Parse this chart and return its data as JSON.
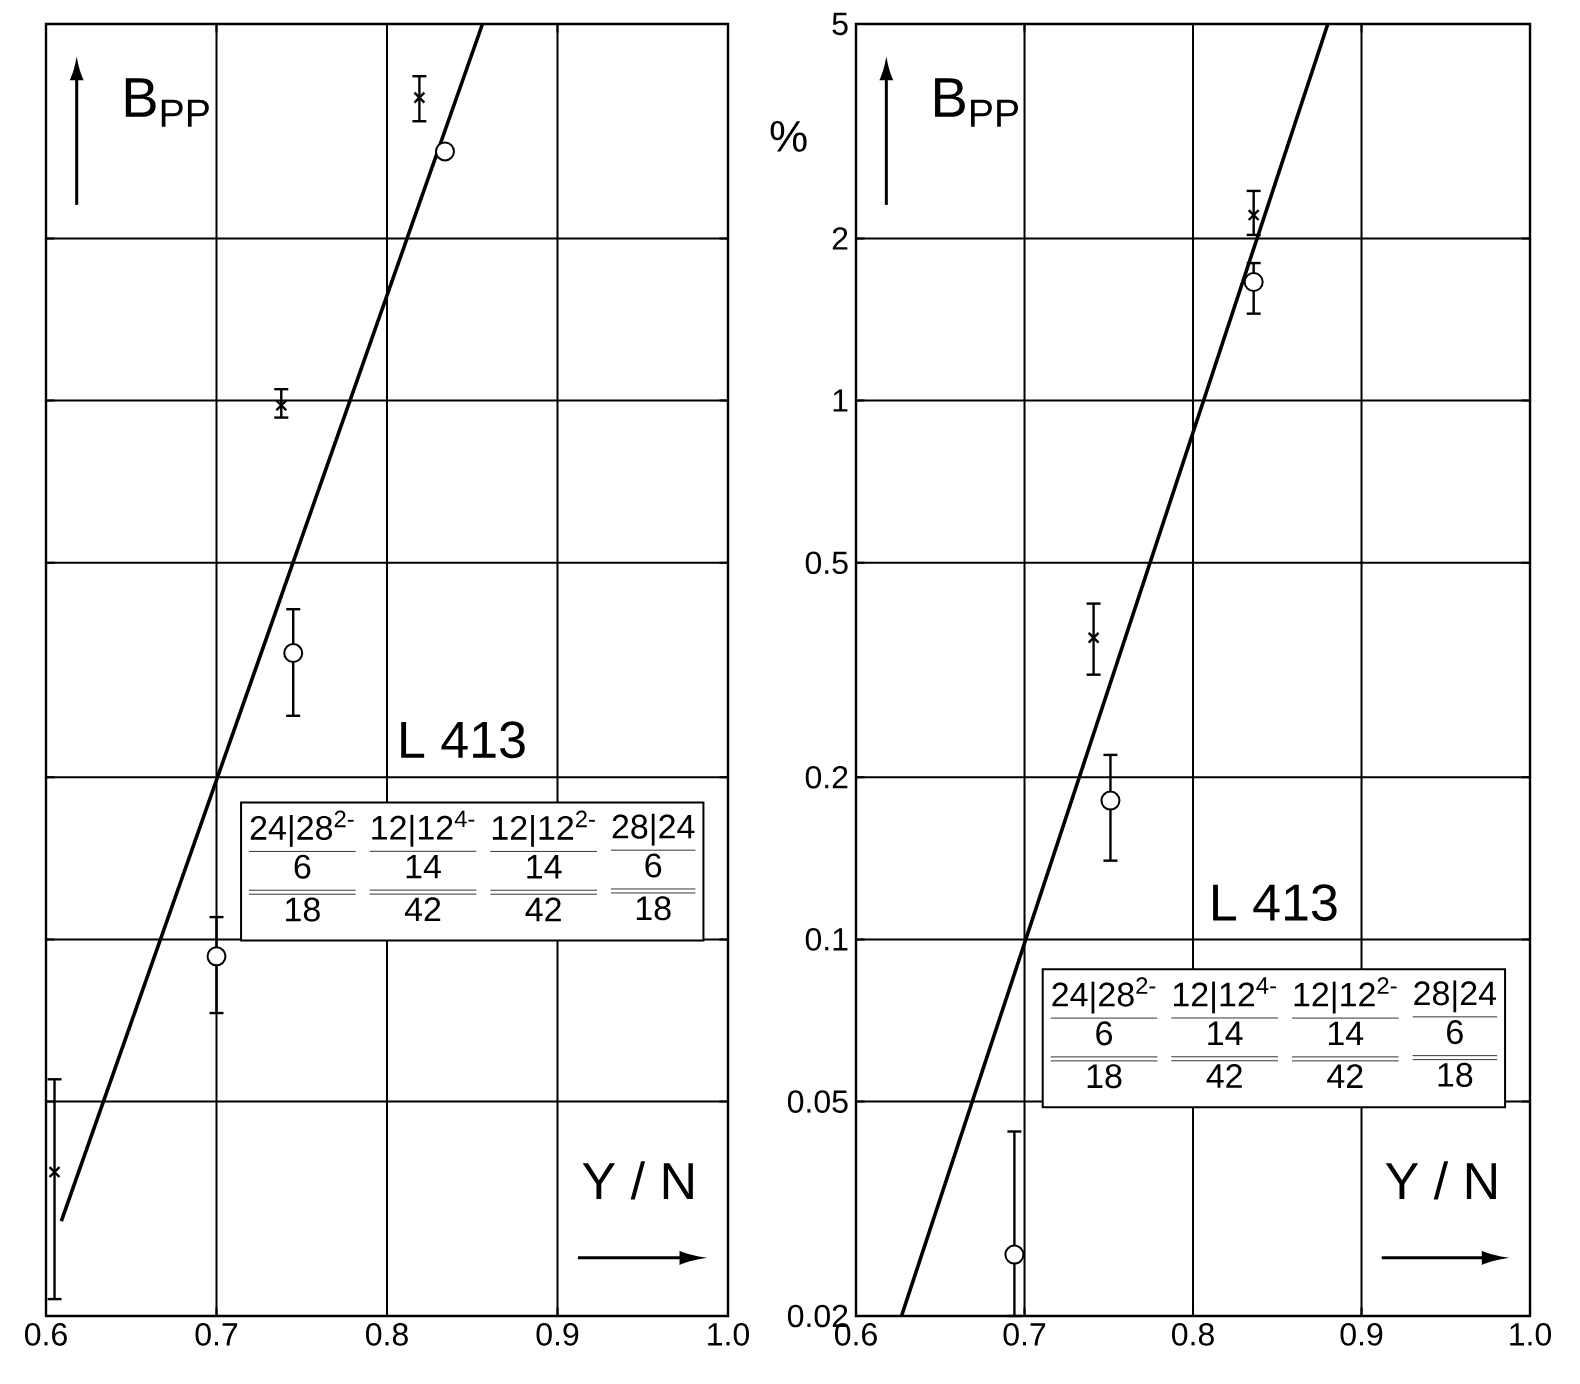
{
  "chart_data": [
    {
      "type": "scatter",
      "title": "B$_{PP}$",
      "xlabel": "Y / N",
      "log": "y",
      "grid": true,
      "tick_labels": "x",
      "xlim": [
        0.6,
        1.0
      ],
      "xticks": [
        0.6,
        0.7,
        0.8,
        0.9,
        {
          "value": 1.0,
          "label": "1.0"
        }
      ],
      "ylim": [
        0.02,
        5
      ],
      "yticks": [
        0.02,
        0.05,
        0.1,
        0.2,
        0.5,
        1,
        2,
        5
      ],
      "series": [
        {
          "marker": "cross",
          "color": "#000000",
          "x": [
            0.605,
            0.738,
            0.819
          ],
          "values": [
            0.037,
            0.98,
            3.65
          ],
          "errors": [
            [
              0.0215,
              0.055
            ],
            [
              0.93,
              1.05
            ],
            [
              3.3,
              4.0
            ]
          ]
        },
        {
          "marker": "circle",
          "color": "#000000",
          "x": [
            0.7,
            0.745,
            0.834
          ],
          "values": [
            0.093,
            0.34,
            2.9
          ],
          "errors": [
            [
              0.073,
              0.11
            ],
            [
              0.26,
              0.41
            ],
            null
          ]
        },
        {
          "type": "line",
          "marker": "none",
          "color": "#000000",
          "x": [
            0.609,
            0.856
          ],
          "values": [
            0.03,
            5
          ]
        }
      ],
      "annotations": [
        "L 413",
        "24|28$^{2-}$",
        "12|12$^{4-}$",
        "12|12$^{2-}$",
        "28|24",
        "6",
        "14",
        "14",
        "6",
        "18",
        "42",
        "42",
        "18"
      ]
    },
    {
      "type": "scatter",
      "title": "B$_{PP}$",
      "xlabel": "Y / N",
      "ylabel": "%",
      "log": "y",
      "grid": true,
      "xlim": [
        0.6,
        1.0
      ],
      "xticks": [
        0.6,
        0.7,
        0.8,
        0.9,
        {
          "value": 1.0,
          "label": "1.0"
        }
      ],
      "ylim": [
        0.02,
        5
      ],
      "yticks": [
        0.02,
        0.05,
        0.1,
        0.2,
        0.5,
        1,
        2,
        5
      ],
      "series": [
        {
          "marker": "cross",
          "color": "#000000",
          "x": [
            0.741,
            0.836
          ],
          "values": [
            0.363,
            2.21
          ],
          "errors": [
            [
              0.31,
              0.42
            ],
            [
              2.03,
              2.45
            ]
          ]
        },
        {
          "marker": "circle",
          "color": "#000000",
          "x": [
            0.694,
            0.751,
            0.836
          ],
          "values": [
            0.026,
            0.181,
            1.66
          ],
          "errors": [
            [
              0.02,
              0.044
            ],
            [
              0.14,
              0.22
            ],
            [
              1.45,
              1.8
            ]
          ]
        },
        {
          "type": "line",
          "marker": "none",
          "color": "#000000",
          "x": [
            0.627,
            0.88
          ],
          "values": [
            0.02,
            5
          ]
        }
      ],
      "annotations": [
        "L 413",
        "24|28$^{2-}$",
        "12|12$^{4-}$",
        "12|12$^{2-}$",
        "28|24",
        "6",
        "14",
        "14",
        "6",
        "18",
        "42",
        "42",
        "18"
      ]
    }
  ]
}
